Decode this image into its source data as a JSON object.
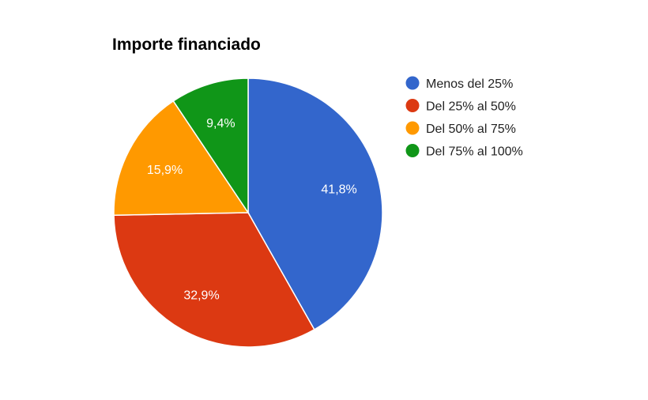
{
  "chart_data": {
    "type": "pie",
    "title": "Importe financiado",
    "start_angle_deg": 0,
    "direction": "clockwise",
    "legend_position": "right",
    "slices": [
      {
        "label": "Menos del 25%",
        "value": 41.8,
        "display": "41,8%",
        "color": "#3366cc"
      },
      {
        "label": "Del 25% al 50%",
        "value": 32.9,
        "display": "32,9%",
        "color": "#dc3912"
      },
      {
        "label": "Del 50% al 75%",
        "value": 15.9,
        "display": "15,9%",
        "color": "#ff9900"
      },
      {
        "label": "Del 75% al 100%",
        "value": 9.4,
        "display": "9,4%",
        "color": "#109618"
      }
    ]
  }
}
